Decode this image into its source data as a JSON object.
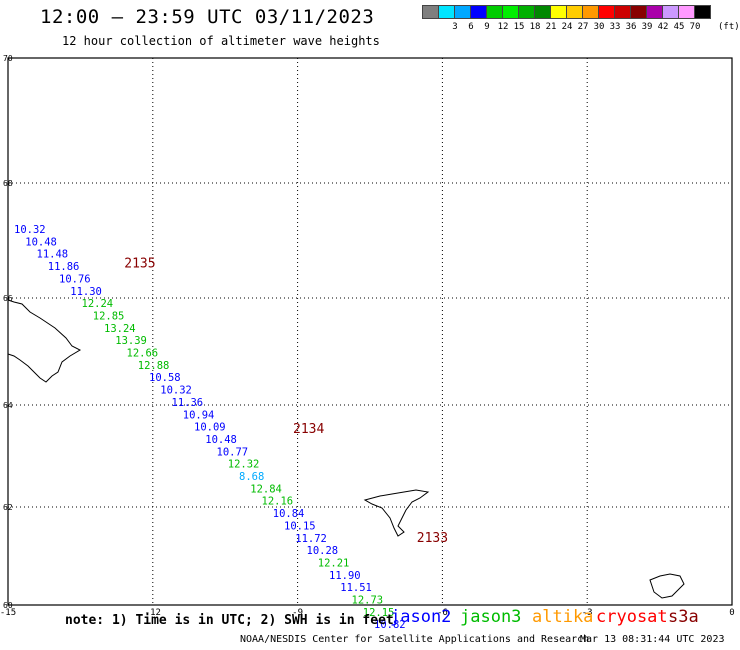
{
  "header": {
    "title": "12:00 – 23:59 UTC 03/11/2023",
    "subtitle": "12 hour collection of altimeter wave heights"
  },
  "legend": {
    "unit_label": "(ft)",
    "swatches": [
      {
        "label": "",
        "color": "#7f7f7f"
      },
      {
        "label": "3",
        "color": "#00e5ff"
      },
      {
        "label": "6",
        "color": "#00a8ff"
      },
      {
        "label": "9",
        "color": "#0000ff"
      },
      {
        "label": "12",
        "color": "#00cc00"
      },
      {
        "label": "15",
        "color": "#00ee00"
      },
      {
        "label": "18",
        "color": "#00b000"
      },
      {
        "label": "21",
        "color": "#008800"
      },
      {
        "label": "24",
        "color": "#ffff00"
      },
      {
        "label": "27",
        "color": "#ffcc00"
      },
      {
        "label": "30",
        "color": "#ff9900"
      },
      {
        "label": "33",
        "color": "#ff0000"
      },
      {
        "label": "36",
        "color": "#cc0000"
      },
      {
        "label": "39",
        "color": "#880000"
      },
      {
        "label": "42",
        "color": "#aa00aa"
      },
      {
        "label": "45",
        "color": "#cc99ff"
      },
      {
        "label": "70",
        "color": "#ff99ff"
      },
      {
        "label": "",
        "color": "#000000"
      }
    ]
  },
  "map": {
    "lat_labels": [
      {
        "lat": 70,
        "label": "70"
      },
      {
        "lat": 68,
        "label": "68"
      },
      {
        "lat": 66,
        "label": "66"
      },
      {
        "lat": 64,
        "label": "64"
      },
      {
        "lat": 62,
        "label": "62"
      },
      {
        "lat": 60,
        "label": "60"
      }
    ],
    "lon_labels": [
      {
        "lon": -15,
        "label": "-15"
      },
      {
        "lon": -12,
        "label": "-12"
      },
      {
        "lon": -9,
        "label": "-9"
      },
      {
        "lon": -6,
        "label": "-6"
      },
      {
        "lon": -3,
        "label": "-3"
      },
      {
        "lon": 0,
        "label": "0"
      }
    ],
    "tracks": [
      {
        "time": "2135",
        "time_color": "#880000",
        "time_lon": -12.1,
        "time_lat": 64.55,
        "points": [
          {
            "v": "10.32",
            "sat": "jason2",
            "lon": -14.55,
            "lat": 65.25
          },
          {
            "v": "10.48",
            "sat": "jason2",
            "lon": -14.3,
            "lat": 65.0
          },
          {
            "v": "11.48",
            "sat": "jason2",
            "lon": -14.05,
            "lat": 64.75
          },
          {
            "v": "11.86",
            "sat": "jason2",
            "lon": -13.8,
            "lat": 64.5
          },
          {
            "v": "10.76",
            "sat": "jason2",
            "lon": -13.55,
            "lat": 64.25
          },
          {
            "v": "11.30",
            "sat": "jason2",
            "lon": -13.3,
            "lat": 64.0
          },
          {
            "v": "12.24",
            "sat": "jason3",
            "lon": -13.05,
            "lat": 63.75
          },
          {
            "v": "12.85",
            "sat": "jason3",
            "lon": -12.8,
            "lat": 63.5
          },
          {
            "v": "13.24",
            "sat": "jason3",
            "lon": -12.55,
            "lat": 63.25
          },
          {
            "v": "13.39",
            "sat": "jason3",
            "lon": -12.3,
            "lat": 63.0
          },
          {
            "v": "12.66",
            "sat": "jason3",
            "lon": -12.05,
            "lat": 62.75
          },
          {
            "v": "12.88",
            "sat": "jason3",
            "lon": -11.8,
            "lat": 62.5
          },
          {
            "v": "10.58",
            "sat": "jason2",
            "lon": -11.55,
            "lat": 62.25
          }
        ]
      },
      {
        "time": "2134",
        "time_color": "#880000",
        "time_lon": -8.35,
        "time_lat": 61.2,
        "points": [
          {
            "v": "10.32",
            "sat": "jason2",
            "lon": -11.3,
            "lat": 62.0
          },
          {
            "v": "11.36",
            "sat": "jason2",
            "lon": -11.05,
            "lat": 61.75
          },
          {
            "v": "10.94",
            "sat": "jason2",
            "lon": -10.8,
            "lat": 61.5
          },
          {
            "v": "10.09",
            "sat": "jason2",
            "lon": -10.55,
            "lat": 61.25
          },
          {
            "v": "10.48",
            "sat": "jason2",
            "lon": -10.3,
            "lat": 61.0
          },
          {
            "v": "10.77",
            "sat": "jason2",
            "lon": -10.05,
            "lat": 60.75
          },
          {
            "v": "12.32",
            "sat": "jason3",
            "lon": -9.8,
            "lat": 60.5
          },
          {
            "v": "8.68",
            "sat": "light",
            "lon": -9.55,
            "lat": 60.25
          },
          {
            "v": "12.84",
            "sat": "jason3",
            "lon": -9.3,
            "lat": 60.0
          },
          {
            "v": "12.16",
            "sat": "jason3",
            "lon": -9.05,
            "lat": 59.75
          },
          {
            "v": "10.84",
            "sat": "jason2",
            "lon": -8.8,
            "lat": 59.5
          },
          {
            "v": "10.15",
            "sat": "jason2",
            "lon": -8.55,
            "lat": 59.25
          },
          {
            "v": "11.72",
            "sat": "jason2",
            "lon": -8.3,
            "lat": 59.0
          },
          {
            "v": "10.28",
            "sat": "jason2",
            "lon": -8.05,
            "lat": 58.75
          },
          {
            "v": "12.21",
            "sat": "jason3",
            "lon": -7.8,
            "lat": 58.5
          }
        ]
      },
      {
        "time": "2133",
        "time_color": "#880000",
        "time_lon": -5.6,
        "time_lat": 59.0,
        "points": [
          {
            "v": "11.90",
            "sat": "jason2",
            "lon": -7.55,
            "lat": 58.25
          },
          {
            "v": "11.51",
            "sat": "jason2",
            "lon": -7.3,
            "lat": 58.0
          },
          {
            "v": "12.73",
            "sat": "jason3",
            "lon": -7.05,
            "lat": 57.75
          },
          {
            "v": "12.15",
            "sat": "jason3",
            "lon": -6.8,
            "lat": 57.5
          },
          {
            "v": "10.82",
            "sat": "jason2",
            "lon": -6.55,
            "lat": 57.25
          }
        ]
      }
    ]
  },
  "note": "note: 1) Time is in UTC; 2) SWH is in feet",
  "satellites": [
    {
      "name": "jason2",
      "color": "#0000ff"
    },
    {
      "name": "jason3",
      "color": "#00bb00"
    },
    {
      "name": "altika",
      "color": "#ff9900"
    },
    {
      "name": "cryosat",
      "color": "#ff0000"
    },
    {
      "name": "s3a",
      "color": "#880000"
    }
  ],
  "footer": {
    "credit": "NOAA/NESDIS Center for Satellite Applications and Research",
    "timestamp": "Mar 13 08:31:44 UTC 2023"
  }
}
